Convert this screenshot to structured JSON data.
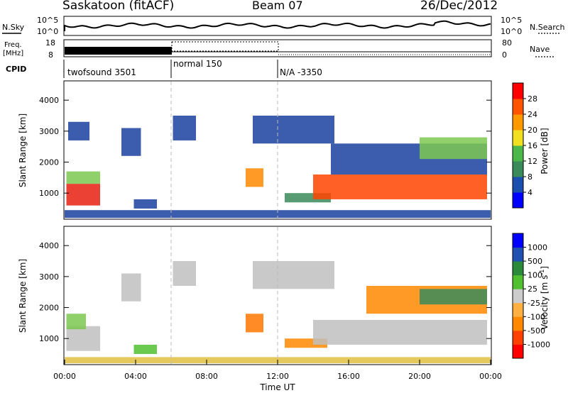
{
  "header": {
    "station": "Saskatoon (fitACF)",
    "beam": "Beam 07",
    "date": "26/Dec/2012"
  },
  "noise_panel": {
    "left_label": "N.Sky",
    "right_label": "N.Search",
    "left_ticks": [
      "10^5",
      "10^0"
    ],
    "right_ticks": [
      "10^5",
      "10^0"
    ]
  },
  "freq_panel": {
    "left_label_line1": "Freq.",
    "left_label_line2": "[MHz]",
    "right_label": "Nave",
    "left_ticks": [
      "18",
      "8"
    ],
    "right_ticks": [
      "80",
      "0"
    ]
  },
  "cpid": {
    "label": "CPID",
    "segments": [
      {
        "name": "twofsound 3501",
        "start_h": 0,
        "end_h": 6
      },
      {
        "name": "normal 150",
        "start_h": 6,
        "end_h": 12
      },
      {
        "name": "N/A -3350",
        "start_h": 12,
        "end_h": 24
      }
    ]
  },
  "chart_data": [
    {
      "type": "heatmap",
      "panel": "power",
      "ylabel": "Slant Range [km]",
      "yticks": [
        "1000",
        "2000",
        "3000",
        "4000"
      ],
      "ylim": [
        180,
        4600
      ],
      "xlim": [
        0,
        24
      ],
      "colorbar_label": "Power [dB]",
      "colorbar_ticks": [
        "28",
        "24",
        "20",
        "16",
        "12",
        "8",
        "4"
      ],
      "colorbar_colors": [
        "#0000ff",
        "#1a4fb0",
        "#3a8a5a",
        "#4cb84c",
        "#f0e020",
        "#ff9900",
        "#ff5500",
        "#ff0000"
      ],
      "regions": [
        {
          "t0": 0.1,
          "t1": 2.0,
          "r0": 600,
          "r1": 1300,
          "color": "#e82010"
        },
        {
          "t0": 0.1,
          "t1": 2.0,
          "r0": 1300,
          "r1": 1700,
          "color": "#7cc850"
        },
        {
          "t0": 0.2,
          "t1": 1.4,
          "r0": 2700,
          "r1": 3300,
          "color": "#1a3f9f"
        },
        {
          "t0": 3.2,
          "t1": 4.3,
          "r0": 2200,
          "r1": 3100,
          "color": "#1a3f9f"
        },
        {
          "t0": 3.9,
          "t1": 5.2,
          "r0": 500,
          "r1": 800,
          "color": "#1a3f9f"
        },
        {
          "t0": 6.1,
          "t1": 7.4,
          "r0": 2700,
          "r1": 3500,
          "color": "#1a3f9f"
        },
        {
          "t0": 10.2,
          "t1": 11.2,
          "r0": 1200,
          "r1": 1800,
          "color": "#ff8800"
        },
        {
          "t0": 10.6,
          "t1": 15.2,
          "r0": 2600,
          "r1": 3500,
          "color": "#1a3f9f"
        },
        {
          "t0": 12.4,
          "t1": 15.0,
          "r0": 700,
          "r1": 1000,
          "color": "#3a8a5a"
        },
        {
          "t0": 14.0,
          "t1": 23.8,
          "r0": 800,
          "r1": 1600,
          "color": "#ff4400"
        },
        {
          "t0": 15.0,
          "t1": 23.8,
          "r0": 1600,
          "r1": 2600,
          "color": "#1a3f9f"
        },
        {
          "t0": 20.0,
          "t1": 23.8,
          "r0": 2100,
          "r1": 2800,
          "color": "#7cc850"
        },
        {
          "t0": 0.0,
          "t1": 24.0,
          "r0": 200,
          "r1": 450,
          "color": "#1a3f9f"
        }
      ]
    },
    {
      "type": "heatmap",
      "panel": "velocity",
      "ylabel": "Slant Range [km]",
      "yticks": [
        "1000",
        "2000",
        "3000",
        "4000"
      ],
      "ylim": [
        180,
        4600
      ],
      "xlim": [
        0,
        24
      ],
      "xticks": [
        "00:00",
        "04:00",
        "08:00",
        "12:00",
        "16:00",
        "20:00",
        "00:00"
      ],
      "xlabel": "Time UT",
      "colorbar_label": "Velocity [m s",
      "colorbar_label_sup": "-1",
      "colorbar_label_end": "]",
      "colorbar_ticks": [
        "1000",
        "500",
        "100",
        "25",
        "-25",
        "-100",
        "-500",
        "-1000"
      ],
      "colorbar_colors": [
        "#ff0000",
        "#ff4000",
        "#ff8800",
        "#ffb040",
        "#cccccc",
        "#50c030",
        "#2a8a3a",
        "#2050b0",
        "#0000ff"
      ],
      "regions": [
        {
          "t0": 0.1,
          "t1": 2.0,
          "r0": 600,
          "r1": 1400,
          "color": "#c0c0c0"
        },
        {
          "t0": 0.1,
          "t1": 1.2,
          "r0": 1300,
          "r1": 1800,
          "color": "#7cc850"
        },
        {
          "t0": 3.2,
          "t1": 4.3,
          "r0": 2200,
          "r1": 3100,
          "color": "#c0c0c0"
        },
        {
          "t0": 3.9,
          "t1": 5.2,
          "r0": 500,
          "r1": 800,
          "color": "#50c030"
        },
        {
          "t0": 6.1,
          "t1": 7.4,
          "r0": 2700,
          "r1": 3500,
          "color": "#c0c0c0"
        },
        {
          "t0": 10.2,
          "t1": 11.2,
          "r0": 1200,
          "r1": 1800,
          "color": "#ff7700"
        },
        {
          "t0": 10.6,
          "t1": 15.2,
          "r0": 2600,
          "r1": 3500,
          "color": "#c0c0c0"
        },
        {
          "t0": 12.4,
          "t1": 14.8,
          "r0": 700,
          "r1": 1000,
          "color": "#ff8800"
        },
        {
          "t0": 14.0,
          "t1": 23.8,
          "r0": 800,
          "r1": 1600,
          "color": "#c0c0c0"
        },
        {
          "t0": 17.0,
          "t1": 23.8,
          "r0": 1800,
          "r1": 2700,
          "color": "#ff8800"
        },
        {
          "t0": 20.0,
          "t1": 23.8,
          "r0": 2100,
          "r1": 2600,
          "color": "#3a8a5a"
        },
        {
          "t0": 0.0,
          "t1": 24.0,
          "r0": 200,
          "r1": 400,
          "color": "#e0c040"
        }
      ]
    }
  ]
}
